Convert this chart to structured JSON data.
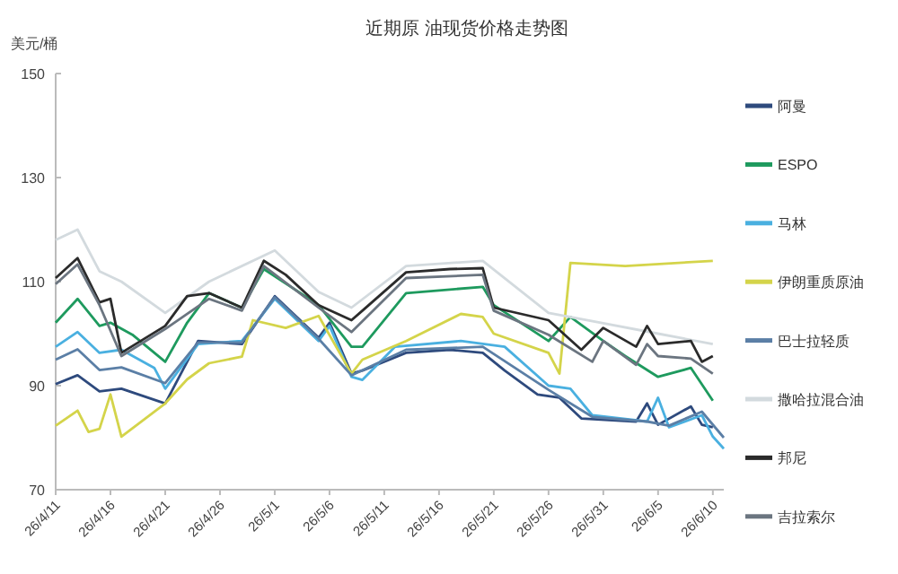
{
  "chart_data": {
    "type": "line",
    "title": "近期原 油现货价格走势图",
    "ylabel": "美元/桶",
    "ylim": [
      70,
      150
    ],
    "yticks": [
      70,
      90,
      110,
      130,
      150
    ],
    "xlim": [
      "--04-11",
      "--06-11"
    ],
    "xticks": [
      {
        "value": "--04-11",
        "label": "26/4/11"
      },
      {
        "value": "--04-16",
        "label": "26/4/16"
      },
      {
        "value": "--04-21",
        "label": "26/4/21"
      },
      {
        "value": "--04-26",
        "label": "26/4/26"
      },
      {
        "value": "--05-01",
        "label": "26/5/1"
      },
      {
        "value": "--05-06",
        "label": "26/5/6"
      },
      {
        "value": "--05-11",
        "label": "26/5/11"
      },
      {
        "value": "--05-16",
        "label": "26/5/16"
      },
      {
        "value": "--05-21",
        "label": "26/5/21"
      },
      {
        "value": "--05-26",
        "label": "26/5/26"
      },
      {
        "value": "--05-31",
        "label": "26/5/31"
      },
      {
        "value": "--06-05",
        "label": "26/6/5"
      },
      {
        "value": "--06-10",
        "label": "26/6/10"
      }
    ],
    "legend": "right",
    "grid": false,
    "marker": "none",
    "line_style": "solid",
    "series": [
      {
        "name": "阿曼",
        "color": "#2e4a7d",
        "x": [
          "--04-11",
          "--04-13",
          "--04-15",
          "--04-17",
          "--04-21",
          "--04-24",
          "--04-28",
          "--05-01",
          "--05-05",
          "--05-06",
          "--05-08",
          "--05-09",
          "--05-13",
          "--05-17",
          "--05-20",
          "--05-22",
          "--05-25",
          "--05-27",
          "--05-29",
          "--06-03",
          "--06-04",
          "--06-05",
          "--06-08",
          "--06-09",
          "--06-10"
        ],
        "values": [
          90.3,
          92,
          88.9,
          89.4,
          86.6,
          98.6,
          98,
          107.2,
          99.2,
          102.1,
          92.3,
          92.9,
          96.3,
          96.9,
          96.3,
          92.9,
          88.3,
          87.7,
          83.7,
          83.1,
          86.6,
          82.5,
          86,
          82.5,
          82
        ]
      },
      {
        "name": "ESPO",
        "color": "#1e9a5e",
        "x": [
          "--04-11",
          "--04-13",
          "--04-15",
          "--04-16",
          "--04-18",
          "--04-21",
          "--04-23",
          "--04-25",
          "--04-28",
          "--04-30",
          "--05-05",
          "--05-08",
          "--05-09",
          "--05-13",
          "--05-20",
          "--05-21",
          "--05-26",
          "--05-28",
          "--05-31",
          "--06-02",
          "--06-05",
          "--06-08",
          "--06-10"
        ],
        "values": [
          102.1,
          106.7,
          101.5,
          102.1,
          99.8,
          94.6,
          102.1,
          107.8,
          105,
          112.4,
          105.5,
          97.5,
          97.5,
          107.8,
          109,
          105.5,
          98.6,
          103.2,
          98.6,
          95.7,
          91.7,
          93.4,
          87.1
        ]
      },
      {
        "name": "马林",
        "color": "#4ab0e0",
        "x": [
          "--04-11",
          "--04-13",
          "--04-15",
          "--04-17",
          "--04-20",
          "--04-21",
          "--04-24",
          "--04-28",
          "--05-01",
          "--05-05",
          "--05-06",
          "--05-08",
          "--05-09",
          "--05-12",
          "--05-18",
          "--05-22",
          "--05-26",
          "--05-28",
          "--05-30",
          "--06-04",
          "--06-05",
          "--06-06",
          "--06-09",
          "--06-10",
          "--06-11"
        ],
        "values": [
          97.5,
          100.3,
          96.3,
          96.9,
          93.4,
          89.4,
          98,
          98.6,
          106.7,
          98.6,
          101.5,
          91.7,
          91.1,
          97.5,
          98.6,
          97.5,
          90,
          89.4,
          84.3,
          83.1,
          87.7,
          82,
          84.3,
          80.2,
          77.9
        ]
      },
      {
        "name": "伊朗重质原油",
        "color": "#d4d44a",
        "x": [
          "--04-11",
          "--04-13",
          "--04-14",
          "--04-15",
          "--04-16",
          "--04-17",
          "--04-21",
          "--04-23",
          "--04-25",
          "--04-28",
          "--04-29",
          "--05-02",
          "--05-05",
          "--05-08",
          "--05-09",
          "--05-13",
          "--05-18",
          "--05-20",
          "--05-21",
          "--05-26",
          "--05-27",
          "--05-28",
          "--06-02",
          "--06-10"
        ],
        "values": [
          82.3,
          85.2,
          81.1,
          81.7,
          88.3,
          80.2,
          86.6,
          91.2,
          94.3,
          95.6,
          102.6,
          101.1,
          103.4,
          92.3,
          95,
          98.6,
          103.8,
          103.2,
          100,
          96.3,
          92.3,
          113.6,
          113,
          114
        ]
      },
      {
        "name": "巴士拉轻质",
        "color": "#5b7fa6",
        "x": [
          "--04-11",
          "--04-13",
          "--04-15",
          "--04-17",
          "--04-21",
          "--04-24",
          "--04-28",
          "--05-01",
          "--05-05",
          "--05-08",
          "--05-13",
          "--05-20",
          "--05-26",
          "--05-30",
          "--06-04",
          "--06-06",
          "--06-09",
          "--06-11"
        ],
        "values": [
          95,
          97,
          93,
          93.5,
          90.5,
          98.3,
          98.3,
          107,
          99,
          92,
          96.9,
          97.5,
          89.2,
          84,
          83.1,
          82.3,
          85,
          80
        ]
      },
      {
        "name": "撒哈拉混合油",
        "color": "#d3dade",
        "x": [
          "--04-11",
          "--04-13",
          "--04-15",
          "--04-17",
          "--04-21",
          "--04-25",
          "--05-01",
          "--05-05",
          "--05-08",
          "--05-13",
          "--05-20",
          "--05-26",
          "--05-31",
          "--06-05",
          "--06-10"
        ],
        "values": [
          118,
          120,
          112,
          110,
          104,
          110,
          116,
          108,
          105,
          113,
          114,
          104,
          102,
          100,
          98
        ]
      },
      {
        "name": "邦尼",
        "color": "#2b2b2b",
        "x": [
          "--04-11",
          "--04-13",
          "--04-15",
          "--04-16",
          "--04-17",
          "--04-21",
          "--04-23",
          "--04-25",
          "--04-28",
          "--04-30",
          "--05-02",
          "--05-05",
          "--05-08",
          "--05-09",
          "--05-13",
          "--05-17",
          "--05-20",
          "--05-21",
          "--05-26",
          "--05-29",
          "--05-31",
          "--06-03",
          "--06-04",
          "--06-05",
          "--06-08",
          "--06-09",
          "--06-10"
        ],
        "values": [
          110.7,
          114.5,
          106,
          106.7,
          96.3,
          101.5,
          107.2,
          107.8,
          105,
          114,
          111.3,
          105.5,
          102.6,
          104.4,
          111.8,
          112.4,
          112.6,
          105,
          102.6,
          96.9,
          101.1,
          97.5,
          101.5,
          98,
          98.6,
          94.6,
          95.7
        ]
      },
      {
        "name": "吉拉索尔",
        "color": "#6b7580",
        "x": [
          "--04-11",
          "--04-13",
          "--04-15",
          "--04-17",
          "--04-21",
          "--04-25",
          "--04-28",
          "--04-30",
          "--05-05",
          "--05-08",
          "--05-13",
          "--05-20",
          "--05-21",
          "--05-26",
          "--05-30",
          "--05-31",
          "--06-03",
          "--06-04",
          "--06-05",
          "--06-08",
          "--06-10"
        ],
        "values": [
          109.5,
          113.3,
          105.5,
          95.7,
          100.9,
          106.7,
          104.4,
          113,
          105,
          100.3,
          110.7,
          111.3,
          104.4,
          99.8,
          94.6,
          98.6,
          94,
          98,
          95.7,
          95.2,
          92.3
        ]
      }
    ]
  }
}
